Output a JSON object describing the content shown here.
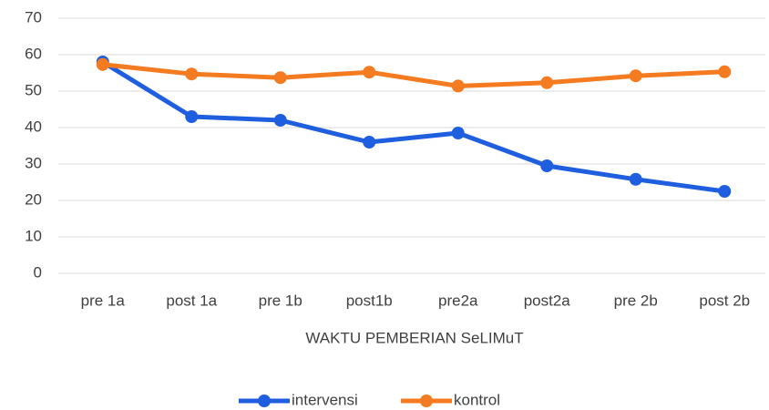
{
  "chart_data": {
    "type": "line",
    "categories": [
      "pre 1a",
      "post 1a",
      "pre 1b",
      "post1b",
      "pre2a",
      "post2a",
      "pre 2b",
      "post 2b"
    ],
    "series": [
      {
        "name": "intervensi",
        "color": "#1f5fdf",
        "values": [
          58,
          43,
          42,
          36,
          38.5,
          29.5,
          25.8,
          22.5
        ]
      },
      {
        "name": "kontrol",
        "color": "#f47b20",
        "values": [
          57.3,
          54.7,
          53.7,
          55.2,
          51.4,
          52.3,
          54.2,
          55.3
        ]
      }
    ],
    "xlabel": "WAKTU PEMBERIAN SeLIMuT",
    "ylim": [
      0,
      70
    ],
    "yticks": [
      0,
      10,
      20,
      30,
      40,
      50,
      60,
      70
    ],
    "grid": true,
    "legend": "bottom"
  }
}
